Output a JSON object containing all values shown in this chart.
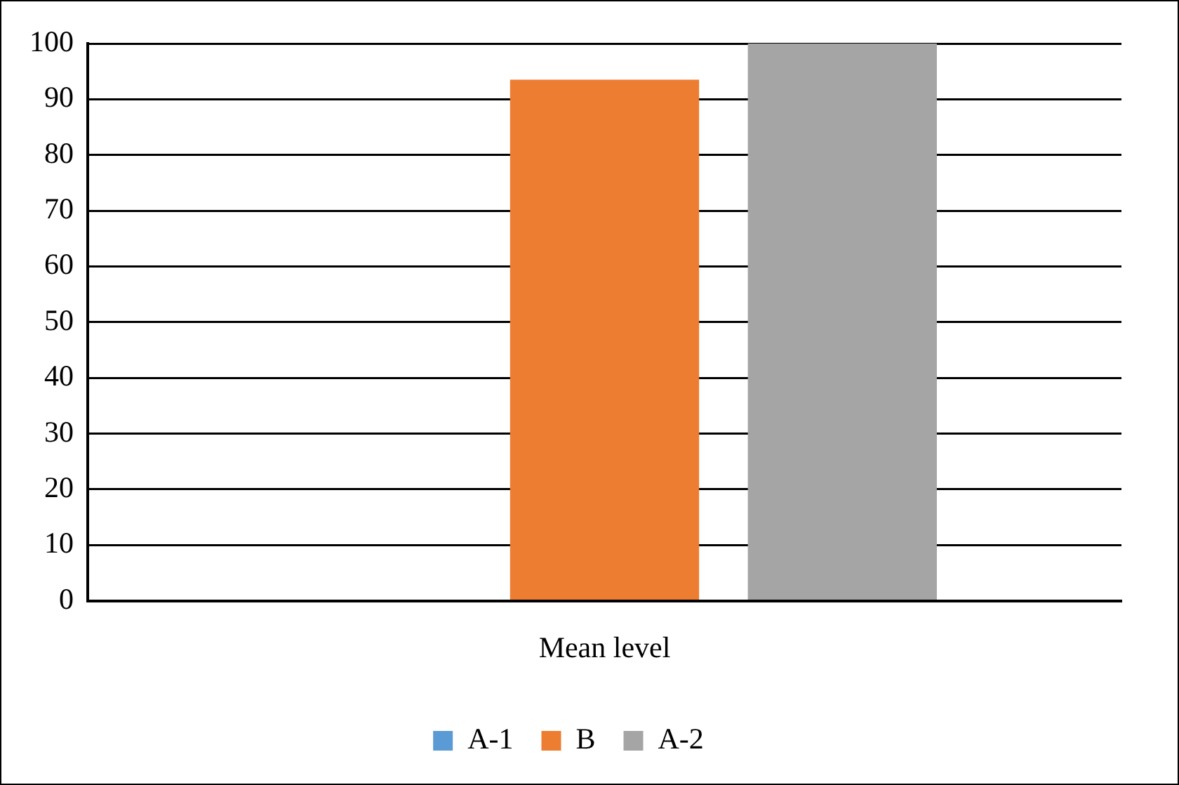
{
  "chart_data": {
    "type": "bar",
    "categories": [
      "Mean level"
    ],
    "series": [
      {
        "name": "A-1",
        "color": "#5b9bd5",
        "values": [
          0
        ]
      },
      {
        "name": "B",
        "color": "#ed7d31",
        "values": [
          93.5
        ]
      },
      {
        "name": "A-2",
        "color": "#a5a5a5",
        "values": [
          100
        ]
      }
    ],
    "ylim": [
      0,
      100
    ],
    "yticks": [
      0,
      10,
      20,
      30,
      40,
      50,
      60,
      70,
      80,
      90,
      100
    ],
    "grid": "y",
    "legend": "bottom"
  }
}
